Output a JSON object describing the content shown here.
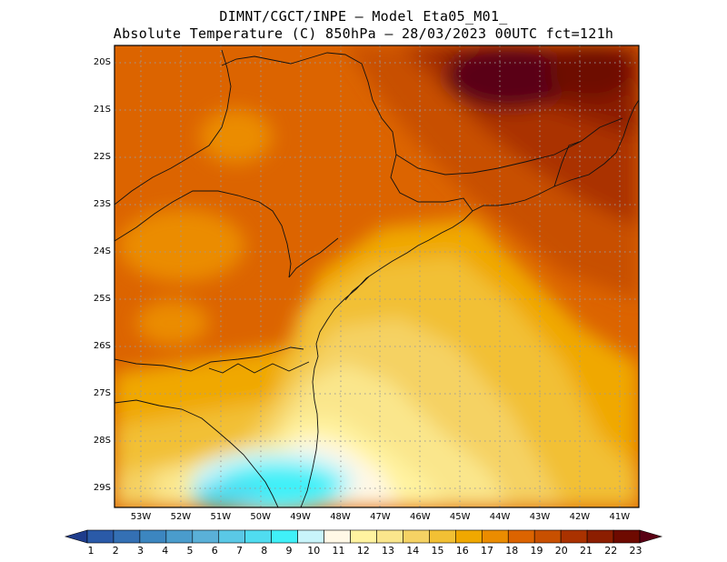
{
  "header": {
    "title_line1": "DIMNT/CGCT/INPE —  Model Eta05_M01_",
    "title_line2": "Absolute Temperature (C) 850hPa —  28/03/2023 00UTC fct=121h"
  },
  "map": {
    "lat_labels": [
      "20S",
      "21S",
      "22S",
      "23S",
      "24S",
      "25S",
      "26S",
      "27S",
      "28S",
      "29S"
    ],
    "lon_labels": [
      "53W",
      "52W",
      "51W",
      "50W",
      "49W",
      "48W",
      "47W",
      "46W",
      "45W",
      "44W",
      "43W",
      "42W",
      "41W"
    ]
  },
  "colorbar": {
    "labels": [
      "1",
      "2",
      "3",
      "4",
      "5",
      "6",
      "7",
      "8",
      "9",
      "10",
      "11",
      "12",
      "13",
      "14",
      "15",
      "16",
      "17",
      "18",
      "19",
      "20",
      "21",
      "22",
      "23"
    ],
    "colors": [
      "#1e3c8c",
      "#2a5aa8",
      "#3470b4",
      "#3c86c0",
      "#4a9ccc",
      "#5ab0d8",
      "#5ac8e6",
      "#50dcf0",
      "#40f0f8",
      "#c8f4fa",
      "#fff8e6",
      "#fff3a0",
      "#fae68c",
      "#f5d264",
      "#f2c034",
      "#f0a800",
      "#eb8c00",
      "#dc6400",
      "#c85000",
      "#aa3200",
      "#8c1e00",
      "#6e0a00",
      "#5a0014"
    ]
  }
}
